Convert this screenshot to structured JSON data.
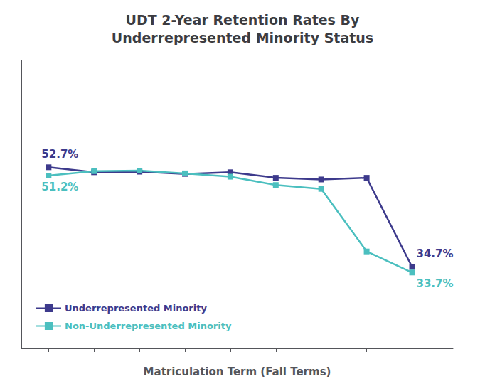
{
  "chart_data": {
    "type": "line",
    "title": "UDT 2-Year Retention Rates By\nUnderrepresented Minority Status",
    "xlabel": "Matriculation Term (Fall Terms)",
    "x": [
      1,
      2,
      3,
      4,
      5,
      6,
      7,
      8,
      9
    ],
    "series": [
      {
        "name": "Underrepresented Minority",
        "color": "#3d3a8c",
        "marker": "square",
        "values": [
          52.7,
          51.8,
          51.9,
          51.5,
          51.8,
          50.8,
          50.5,
          50.8,
          34.7
        ],
        "annotations": [
          {
            "text": "52.7%",
            "x": 1,
            "y": 52.7
          },
          {
            "text": "34.7%",
            "x": 9,
            "y": 34.7
          }
        ]
      },
      {
        "name": "Non-Underrepresented Minority",
        "color": "#4bbfbf",
        "marker": "square",
        "values": [
          51.2,
          52.0,
          52.1,
          51.6,
          51.0,
          49.5,
          48.8,
          37.5,
          33.7
        ],
        "annotations": [
          {
            "text": "51.2%",
            "x": 1,
            "y": 51.2
          },
          {
            "text": "33.7%",
            "x": 9,
            "y": 33.7
          }
        ]
      }
    ],
    "xlim": [
      0.4,
      9.9
    ],
    "xticks": [
      1,
      2,
      3,
      4,
      5,
      6,
      7,
      8,
      9
    ],
    "ylim": [
      20,
      72
    ],
    "yticks": [],
    "tick_labels": false,
    "grid": false,
    "legend": "lower left"
  }
}
